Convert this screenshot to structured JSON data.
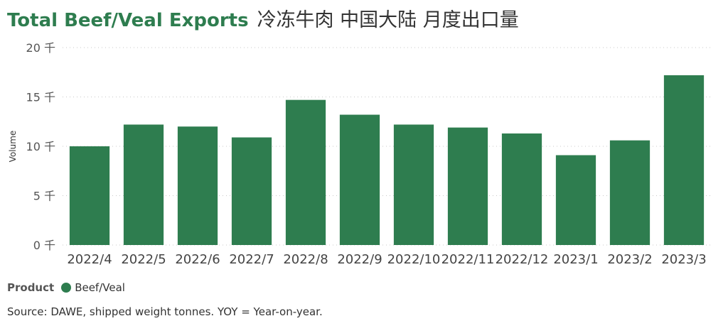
{
  "title": "Total Beef/Veal Exports",
  "subtitle": "冷冻牛肉 中国大陆 月度出口量",
  "legend": {
    "title": "Product",
    "items": [
      {
        "label": "Beef/Veal",
        "color": "#2e7d4f"
      }
    ]
  },
  "footnote": "Source: DAWE, shipped weight tonnes. YOY = Year-on-year.",
  "chart_data": {
    "type": "bar",
    "categories": [
      "2022/4",
      "2022/5",
      "2022/6",
      "2022/7",
      "2022/8",
      "2022/9",
      "2022/10",
      "2022/11",
      "2022/12",
      "2023/1",
      "2023/2",
      "2023/3"
    ],
    "series": [
      {
        "name": "Beef/Veal",
        "values": [
          10.0,
          12.2,
          12.0,
          10.9,
          14.7,
          13.2,
          12.2,
          11.9,
          11.3,
          9.1,
          10.6,
          17.2
        ],
        "color": "#2e7d4f"
      }
    ],
    "ylabel": "Volume",
    "yticks": [
      0,
      5,
      10,
      15,
      20
    ],
    "ytick_labels": [
      "0 千",
      "5 千",
      "10 千",
      "15 千",
      "20 千"
    ],
    "ylim": [
      0,
      20
    ],
    "grid": true,
    "legend_position": "bottom-left"
  }
}
